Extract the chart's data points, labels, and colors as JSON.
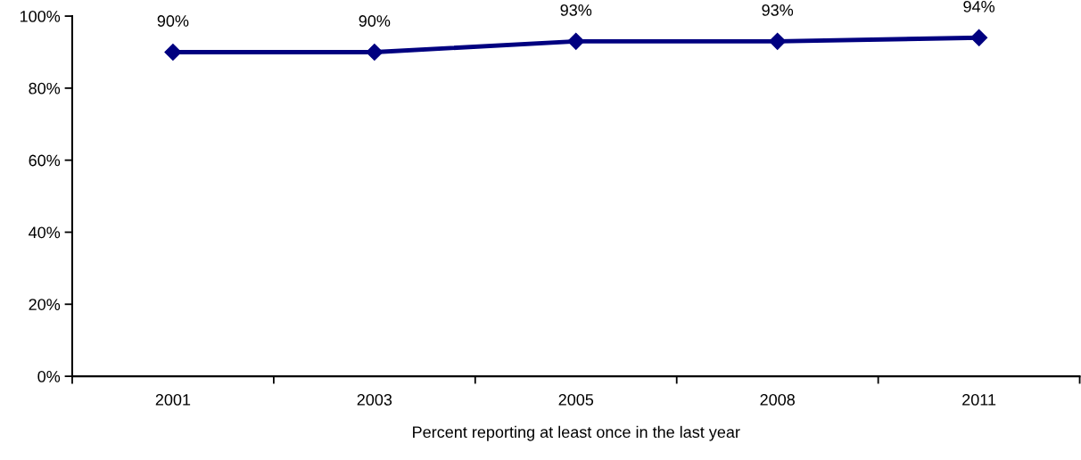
{
  "chart_data": {
    "type": "line",
    "xlabel": "Percent reporting at least once in the last year",
    "categories": [
      "2001",
      "2003",
      "2005",
      "2008",
      "2011"
    ],
    "values": [
      90,
      90,
      93,
      93,
      94
    ],
    "value_labels": [
      "90%",
      "90%",
      "93%",
      "93%",
      "94%"
    ],
    "color": "#000080",
    "marker": "diamond",
    "line_style": "solid",
    "ylim": [
      0,
      100
    ],
    "yticks": [
      {
        "value": 0,
        "label": "0%"
      },
      {
        "value": 20,
        "label": "20%"
      },
      {
        "value": 40,
        "label": "40%"
      },
      {
        "value": 60,
        "label": "60%"
      },
      {
        "value": 80,
        "label": "80%"
      },
      {
        "value": 100,
        "label": "100%"
      }
    ]
  }
}
